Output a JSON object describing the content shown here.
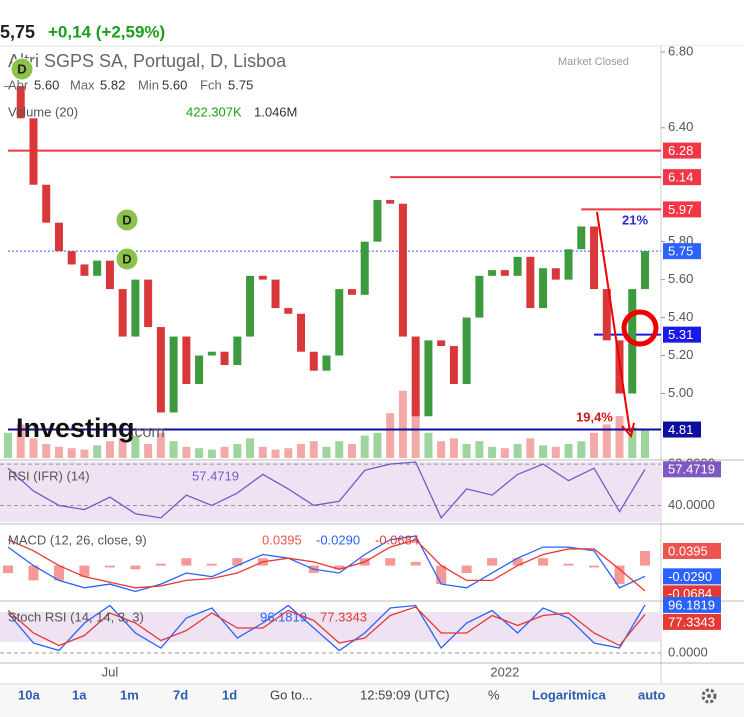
{
  "header": {
    "price": "5,75",
    "change": "+0,14 (+2,59%)"
  },
  "title": "Altri SGPS SA, Portugal, D, Lisboa",
  "status": "Market Closed",
  "legend": {
    "ohlc": [
      "Abr",
      "5.60",
      "Max",
      "5.82",
      "Min",
      "5.60",
      "Fch",
      "5.75"
    ],
    "volume_name": "Volume (20)",
    "volume_ma": "422.307K",
    "volume_last": "1.046M"
  },
  "markers": [
    "D",
    "D",
    "D"
  ],
  "annotations": [
    "21%",
    "19,4%"
  ],
  "watermark": [
    "Investing",
    ".com"
  ],
  "price_panel": {
    "categories": [
      null,
      null,
      null,
      null,
      null,
      null,
      null,
      null,
      "Jul",
      null,
      null,
      null,
      null,
      null,
      null,
      null,
      null,
      null,
      null,
      null,
      null,
      null,
      null,
      null,
      null,
      null,
      null,
      null,
      null,
      null,
      null,
      null,
      null,
      null,
      null,
      null,
      null,
      null,
      null,
      "2022",
      null,
      null,
      null,
      null,
      null,
      null,
      null,
      null,
      null,
      null,
      null
    ],
    "closes": [
      6.62,
      6.45,
      6.1,
      5.9,
      5.75,
      5.68,
      5.62,
      5.7,
      5.55,
      5.3,
      5.6,
      5.35,
      4.9,
      5.3,
      5.05,
      5.2,
      5.22,
      5.15,
      5.3,
      5.62,
      5.6,
      5.45,
      5.42,
      5.22,
      5.12,
      5.2,
      5.55,
      5.52,
      5.8,
      6.02,
      6.0,
      5.3,
      4.88,
      5.28,
      5.25,
      5.05,
      5.4,
      5.62,
      5.65,
      5.62,
      5.72,
      5.45,
      5.66,
      5.6,
      5.76,
      5.88,
      5.55,
      5.28,
      5.0,
      5.55,
      5.75
    ],
    "volumes": [
      900000,
      1200000,
      700000,
      500000,
      400000,
      350000,
      300000,
      450000,
      600000,
      700000,
      800000,
      500000,
      900000,
      600000,
      400000,
      350000,
      300000,
      400000,
      500000,
      700000,
      400000,
      300000,
      350000,
      500000,
      600000,
      400000,
      600000,
      500000,
      800000,
      900000,
      1600000,
      2400000,
      2000000,
      900000,
      600000,
      700000,
      500000,
      600000,
      400000,
      350000,
      500000,
      700000,
      450000,
      400000,
      500000,
      600000,
      900000,
      1200000,
      1500000,
      1100000,
      1046000
    ],
    "vlim": [
      0,
      2500000
    ],
    "ylim": [
      4.66,
      6.81
    ],
    "yticks": [
      {
        "value": 6.8,
        "label": "6.80"
      },
      {
        "value": 6.4,
        "label": "6.40"
      },
      {
        "value": 5.8,
        "label": "5.80"
      },
      {
        "value": 5.6,
        "label": "5.60"
      },
      {
        "value": 5.4,
        "label": "5.40"
      },
      {
        "value": 5.2,
        "label": "5.20"
      },
      {
        "value": 5.0,
        "label": "5.00"
      }
    ],
    "levels": [
      {
        "value": 6.28,
        "color": "#f23645",
        "from": 0,
        "style": "solid"
      },
      {
        "value": 6.14,
        "color": "#f23645",
        "from": 30,
        "style": "solid"
      },
      {
        "value": 5.97,
        "color": "#f23645",
        "from": 45,
        "style": "solid"
      },
      {
        "value": 5.75,
        "color": "#2962ff",
        "from": 0,
        "style": "dotted"
      },
      {
        "value": 5.31,
        "color": "#1a1ae6",
        "from": 46,
        "style": "solid"
      },
      {
        "value": 4.81,
        "color": "#0d0d9e",
        "from": 0,
        "style": "solid"
      }
    ]
  },
  "rsi": {
    "title": "RSI (IFR) (14)",
    "ylim": [
      32,
      61
    ],
    "yticks": [
      {
        "value": 60,
        "label": "60.0000"
      },
      {
        "value": 40,
        "label": "40.0000"
      }
    ],
    "series": [
      {
        "color": "#7e57c2",
        "style": "line",
        "values": [
          58,
          47,
          40,
          38,
          44,
          36,
          34,
          45,
          40,
          46,
          55,
          48,
          40,
          42,
          57,
          60,
          61,
          34,
          48,
          45,
          55,
          60,
          52,
          58,
          37,
          57.4719
        ],
        "last_label": "57.4719"
      }
    ]
  },
  "macd": {
    "title": "MACD (12, 26, close, 9)",
    "ylim": [
      -0.093,
      0.107
    ],
    "yticks": [],
    "series": [
      {
        "color": "#ef5350",
        "style": "bars",
        "values": [
          -0.02,
          -0.04,
          -0.04,
          -0.03,
          -0.005,
          -0.01,
          0.005,
          0.02,
          0.005,
          0.02,
          0.02,
          0.0,
          -0.02,
          -0.01,
          0.02,
          0.02,
          0.01,
          -0.05,
          -0.02,
          0.02,
          0.02,
          0.02,
          0.005,
          -0.005,
          -0.05,
          0.0395
        ],
        "last_label": "0.0395"
      },
      {
        "color": "#2962ff",
        "style": "line",
        "values": [
          0.05,
          0.0,
          -0.04,
          -0.06,
          -0.05,
          -0.07,
          -0.05,
          -0.02,
          -0.03,
          0.0,
          0.03,
          0.02,
          -0.01,
          -0.02,
          0.03,
          0.07,
          0.08,
          -0.05,
          -0.06,
          -0.02,
          0.02,
          0.05,
          0.05,
          0.04,
          -0.06,
          -0.029
        ],
        "last_label": "-0.0290"
      },
      {
        "color": "#e53935",
        "style": "line",
        "values": [
          0.07,
          0.04,
          0.0,
          -0.03,
          -0.045,
          -0.06,
          -0.055,
          -0.04,
          -0.035,
          -0.02,
          0.01,
          0.02,
          0.01,
          -0.01,
          0.01,
          0.05,
          0.07,
          0.0,
          -0.04,
          -0.04,
          0.0,
          0.03,
          0.045,
          0.045,
          -0.01,
          -0.0684
        ],
        "last_label": "-0.0684"
      }
    ]
  },
  "stoch": {
    "title": "Stoch RSI (14, 14, 3, 3)",
    "ylim": [
      -18,
      100
    ],
    "yticks": [
      {
        "value": 0,
        "label": "0.0000"
      }
    ],
    "series": [
      {
        "color": "#2962ff",
        "style": "line",
        "values": [
          80,
          20,
          5,
          60,
          95,
          40,
          10,
          70,
          90,
          30,
          60,
          95,
          50,
          5,
          40,
          90,
          95,
          10,
          60,
          85,
          40,
          90,
          70,
          20,
          10,
          96.1819
        ],
        "last_label": "96.1819"
      },
      {
        "color": "#e53935",
        "style": "line",
        "values": [
          85,
          40,
          15,
          35,
          80,
          60,
          25,
          45,
          80,
          50,
          50,
          85,
          65,
          20,
          30,
          75,
          92,
          40,
          40,
          75,
          55,
          75,
          80,
          40,
          15,
          77.3343
        ],
        "last_label": "77.3343"
      }
    ]
  },
  "toolbar": [
    "10a",
    "1a",
    "1m",
    "7d",
    "1d",
    "Go to...",
    "12:59:09 (UTC)",
    "%",
    "Logaritmica",
    "auto"
  ]
}
